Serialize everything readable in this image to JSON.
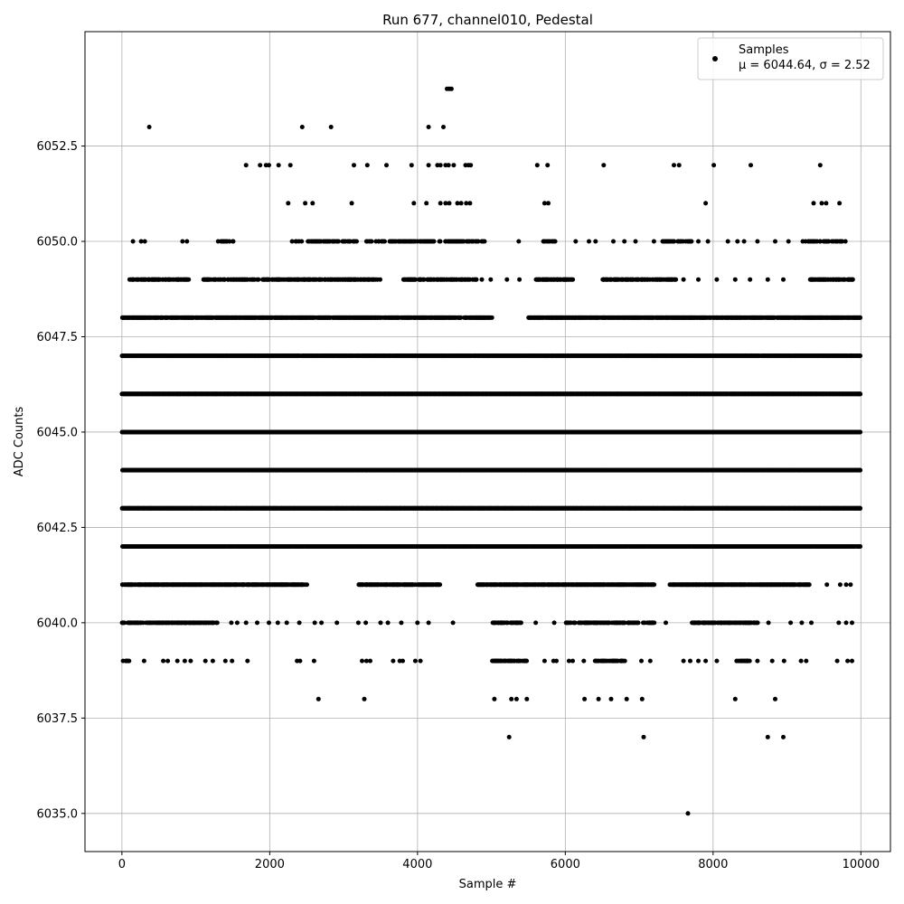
{
  "chart_data": {
    "type": "scatter",
    "title": "Run 677, channel010, Pedestal",
    "xlabel": "Sample #",
    "ylabel": "ADC Counts",
    "xlim": [
      -500,
      10400
    ],
    "ylim": [
      6034.0,
      6055.5
    ],
    "xticks": [
      0,
      2000,
      4000,
      6000,
      8000,
      10000
    ],
    "xtick_labels": [
      "0",
      "2000",
      "4000",
      "6000",
      "8000",
      "10000"
    ],
    "yticks": [
      6035.0,
      6037.5,
      6040.0,
      6042.5,
      6045.0,
      6047.5,
      6050.0,
      6052.5
    ],
    "ytick_labels": [
      "6035.0",
      "6037.5",
      "6040.0",
      "6042.5",
      "6045.0",
      "6047.5",
      "6050.0",
      "6052.5"
    ],
    "grid": true,
    "legend": {
      "placement": "top-right",
      "label": "Samples",
      "stats": "μ = 6044.64, σ = 2.52"
    },
    "marker_color": "#000000",
    "n_samples": 10000,
    "dense_levels": [
      {
        "y": 6039,
        "ranges": [
          [
            0,
            120
          ],
          [
            5000,
            5500
          ],
          [
            6400,
            6800
          ],
          [
            8300,
            8500
          ]
        ],
        "density": 0.55
      },
      {
        "y": 6040,
        "ranges": [
          [
            0,
            1300
          ],
          [
            5000,
            5400
          ],
          [
            6000,
            7200
          ],
          [
            7700,
            8600
          ]
        ],
        "density": 0.6
      },
      {
        "y": 6041,
        "ranges": [
          [
            0,
            2500
          ],
          [
            3200,
            4300
          ],
          [
            4800,
            7200
          ],
          [
            7400,
            9300
          ]
        ],
        "density": 0.85
      },
      {
        "y": 6042,
        "ranges": [
          [
            0,
            10000
          ]
        ],
        "density": 0.95
      },
      {
        "y": 6043,
        "ranges": [
          [
            0,
            10000
          ]
        ],
        "density": 1.0
      },
      {
        "y": 6044,
        "ranges": [
          [
            0,
            10000
          ]
        ],
        "density": 1.0
      },
      {
        "y": 6045,
        "ranges": [
          [
            0,
            10000
          ]
        ],
        "density": 1.0
      },
      {
        "y": 6046,
        "ranges": [
          [
            0,
            10000
          ]
        ],
        "density": 1.0
      },
      {
        "y": 6047,
        "ranges": [
          [
            0,
            10000
          ]
        ],
        "density": 0.97
      },
      {
        "y": 6048,
        "ranges": [
          [
            0,
            5000
          ],
          [
            5500,
            10000
          ]
        ],
        "density": 0.85
      },
      {
        "y": 6049,
        "ranges": [
          [
            100,
            900
          ],
          [
            1100,
            3500
          ],
          [
            3800,
            4800
          ],
          [
            5600,
            6100
          ],
          [
            6500,
            7500
          ],
          [
            9300,
            9900
          ]
        ],
        "density": 0.6
      },
      {
        "y": 6050,
        "ranges": [
          [
            1300,
            1500
          ],
          [
            2300,
            3200
          ],
          [
            3300,
            4900
          ],
          [
            5700,
            5900
          ],
          [
            7300,
            7700
          ],
          [
            9200,
            9800
          ]
        ],
        "density": 0.45
      }
    ],
    "sparse_points": [
      {
        "x": 370,
        "y": 6053
      },
      {
        "x": 2440,
        "y": 6053
      },
      {
        "x": 2830,
        "y": 6053
      },
      {
        "x": 4150,
        "y": 6053
      },
      {
        "x": 4350,
        "y": 6053
      },
      {
        "x": 4400,
        "y": 6054
      },
      {
        "x": 4430,
        "y": 6054
      },
      {
        "x": 4460,
        "y": 6054
      },
      {
        "x": 1680,
        "y": 6052
      },
      {
        "x": 1870,
        "y": 6052
      },
      {
        "x": 1950,
        "y": 6052
      },
      {
        "x": 1990,
        "y": 6052
      },
      {
        "x": 2120,
        "y": 6052
      },
      {
        "x": 2280,
        "y": 6052
      },
      {
        "x": 3140,
        "y": 6052
      },
      {
        "x": 3320,
        "y": 6052
      },
      {
        "x": 3580,
        "y": 6052
      },
      {
        "x": 3920,
        "y": 6052
      },
      {
        "x": 4150,
        "y": 6052
      },
      {
        "x": 4270,
        "y": 6052
      },
      {
        "x": 4310,
        "y": 6052
      },
      {
        "x": 4380,
        "y": 6052
      },
      {
        "x": 4420,
        "y": 6052
      },
      {
        "x": 4490,
        "y": 6052
      },
      {
        "x": 4650,
        "y": 6052
      },
      {
        "x": 4690,
        "y": 6052
      },
      {
        "x": 4720,
        "y": 6052
      },
      {
        "x": 5620,
        "y": 6052
      },
      {
        "x": 5760,
        "y": 6052
      },
      {
        "x": 6520,
        "y": 6052
      },
      {
        "x": 7470,
        "y": 6052
      },
      {
        "x": 7540,
        "y": 6052
      },
      {
        "x": 8010,
        "y": 6052
      },
      {
        "x": 8510,
        "y": 6052
      },
      {
        "x": 9450,
        "y": 6052
      },
      {
        "x": 2250,
        "y": 6051
      },
      {
        "x": 2480,
        "y": 6051
      },
      {
        "x": 2580,
        "y": 6051
      },
      {
        "x": 3110,
        "y": 6051
      },
      {
        "x": 3950,
        "y": 6051
      },
      {
        "x": 4120,
        "y": 6051
      },
      {
        "x": 4310,
        "y": 6051
      },
      {
        "x": 4380,
        "y": 6051
      },
      {
        "x": 4430,
        "y": 6051
      },
      {
        "x": 4540,
        "y": 6051
      },
      {
        "x": 4590,
        "y": 6051
      },
      {
        "x": 4660,
        "y": 6051
      },
      {
        "x": 4710,
        "y": 6051
      },
      {
        "x": 5720,
        "y": 6051
      },
      {
        "x": 5770,
        "y": 6051
      },
      {
        "x": 7900,
        "y": 6051
      },
      {
        "x": 9360,
        "y": 6051
      },
      {
        "x": 9470,
        "y": 6051
      },
      {
        "x": 9530,
        "y": 6051
      },
      {
        "x": 9710,
        "y": 6051
      },
      {
        "x": 150,
        "y": 6050
      },
      {
        "x": 260,
        "y": 6050
      },
      {
        "x": 310,
        "y": 6050
      },
      {
        "x": 820,
        "y": 6050
      },
      {
        "x": 880,
        "y": 6050
      },
      {
        "x": 5370,
        "y": 6050
      },
      {
        "x": 6140,
        "y": 6050
      },
      {
        "x": 6320,
        "y": 6050
      },
      {
        "x": 6410,
        "y": 6050
      },
      {
        "x": 6650,
        "y": 6050
      },
      {
        "x": 6800,
        "y": 6050
      },
      {
        "x": 6950,
        "y": 6050
      },
      {
        "x": 7200,
        "y": 6050
      },
      {
        "x": 7800,
        "y": 6050
      },
      {
        "x": 7930,
        "y": 6050
      },
      {
        "x": 8200,
        "y": 6050
      },
      {
        "x": 8330,
        "y": 6050
      },
      {
        "x": 8420,
        "y": 6050
      },
      {
        "x": 8600,
        "y": 6050
      },
      {
        "x": 8840,
        "y": 6050
      },
      {
        "x": 9020,
        "y": 6050
      },
      {
        "x": 560,
        "y": 6049
      },
      {
        "x": 4870,
        "y": 6049
      },
      {
        "x": 4990,
        "y": 6049
      },
      {
        "x": 5210,
        "y": 6049
      },
      {
        "x": 5380,
        "y": 6049
      },
      {
        "x": 7600,
        "y": 6049
      },
      {
        "x": 7800,
        "y": 6049
      },
      {
        "x": 8050,
        "y": 6049
      },
      {
        "x": 8300,
        "y": 6049
      },
      {
        "x": 8500,
        "y": 6049
      },
      {
        "x": 8740,
        "y": 6049
      },
      {
        "x": 8950,
        "y": 6049
      },
      {
        "x": 9890,
        "y": 6049
      },
      {
        "x": 1400,
        "y": 6039
      },
      {
        "x": 1490,
        "y": 6039
      },
      {
        "x": 1700,
        "y": 6039
      },
      {
        "x": 2370,
        "y": 6039
      },
      {
        "x": 2410,
        "y": 6039
      },
      {
        "x": 2600,
        "y": 6039
      },
      {
        "x": 3250,
        "y": 6039
      },
      {
        "x": 3310,
        "y": 6039
      },
      {
        "x": 3360,
        "y": 6039
      },
      {
        "x": 3670,
        "y": 6039
      },
      {
        "x": 3760,
        "y": 6039
      },
      {
        "x": 3800,
        "y": 6039
      },
      {
        "x": 3970,
        "y": 6039
      },
      {
        "x": 4040,
        "y": 6039
      },
      {
        "x": 5720,
        "y": 6039
      },
      {
        "x": 5840,
        "y": 6039
      },
      {
        "x": 5880,
        "y": 6039
      },
      {
        "x": 6050,
        "y": 6039
      },
      {
        "x": 6100,
        "y": 6039
      },
      {
        "x": 6250,
        "y": 6039
      },
      {
        "x": 7030,
        "y": 6039
      },
      {
        "x": 7150,
        "y": 6039
      },
      {
        "x": 7600,
        "y": 6039
      },
      {
        "x": 7690,
        "y": 6039
      },
      {
        "x": 7800,
        "y": 6039
      },
      {
        "x": 7900,
        "y": 6039
      },
      {
        "x": 8050,
        "y": 6039
      },
      {
        "x": 8600,
        "y": 6039
      },
      {
        "x": 8800,
        "y": 6039
      },
      {
        "x": 8960,
        "y": 6039
      },
      {
        "x": 9190,
        "y": 6039
      },
      {
        "x": 9260,
        "y": 6039
      },
      {
        "x": 9680,
        "y": 6039
      },
      {
        "x": 9820,
        "y": 6039
      },
      {
        "x": 9880,
        "y": 6039
      },
      {
        "x": 300,
        "y": 6039
      },
      {
        "x": 560,
        "y": 6039
      },
      {
        "x": 620,
        "y": 6039
      },
      {
        "x": 750,
        "y": 6039
      },
      {
        "x": 850,
        "y": 6039
      },
      {
        "x": 930,
        "y": 6039
      },
      {
        "x": 1130,
        "y": 6039
      },
      {
        "x": 1230,
        "y": 6039
      },
      {
        "x": 1480,
        "y": 6040
      },
      {
        "x": 1560,
        "y": 6040
      },
      {
        "x": 1680,
        "y": 6040
      },
      {
        "x": 1830,
        "y": 6040
      },
      {
        "x": 1990,
        "y": 6040
      },
      {
        "x": 2110,
        "y": 6040
      },
      {
        "x": 2230,
        "y": 6040
      },
      {
        "x": 2400,
        "y": 6040
      },
      {
        "x": 2610,
        "y": 6040
      },
      {
        "x": 2700,
        "y": 6040
      },
      {
        "x": 2910,
        "y": 6040
      },
      {
        "x": 3200,
        "y": 6040
      },
      {
        "x": 3300,
        "y": 6040
      },
      {
        "x": 3500,
        "y": 6040
      },
      {
        "x": 3600,
        "y": 6040
      },
      {
        "x": 3780,
        "y": 6040
      },
      {
        "x": 4000,
        "y": 6040
      },
      {
        "x": 4150,
        "y": 6040
      },
      {
        "x": 4480,
        "y": 6040
      },
      {
        "x": 5600,
        "y": 6040
      },
      {
        "x": 5850,
        "y": 6040
      },
      {
        "x": 7360,
        "y": 6040
      },
      {
        "x": 8750,
        "y": 6040
      },
      {
        "x": 9050,
        "y": 6040
      },
      {
        "x": 9200,
        "y": 6040
      },
      {
        "x": 9330,
        "y": 6040
      },
      {
        "x": 9700,
        "y": 6040
      },
      {
        "x": 9800,
        "y": 6040
      },
      {
        "x": 9880,
        "y": 6040
      },
      {
        "x": 9540,
        "y": 6041
      },
      {
        "x": 9720,
        "y": 6041
      },
      {
        "x": 9800,
        "y": 6041
      },
      {
        "x": 9860,
        "y": 6041
      },
      {
        "x": 2660,
        "y": 6038
      },
      {
        "x": 3280,
        "y": 6038
      },
      {
        "x": 5040,
        "y": 6038
      },
      {
        "x": 5270,
        "y": 6038
      },
      {
        "x": 5340,
        "y": 6038
      },
      {
        "x": 5480,
        "y": 6038
      },
      {
        "x": 6260,
        "y": 6038
      },
      {
        "x": 6450,
        "y": 6038
      },
      {
        "x": 6620,
        "y": 6038
      },
      {
        "x": 6830,
        "y": 6038
      },
      {
        "x": 7040,
        "y": 6038
      },
      {
        "x": 8300,
        "y": 6038
      },
      {
        "x": 8840,
        "y": 6038
      },
      {
        "x": 5240,
        "y": 6037
      },
      {
        "x": 7060,
        "y": 6037
      },
      {
        "x": 8740,
        "y": 6037
      },
      {
        "x": 8950,
        "y": 6037
      },
      {
        "x": 7660,
        "y": 6035
      }
    ]
  }
}
